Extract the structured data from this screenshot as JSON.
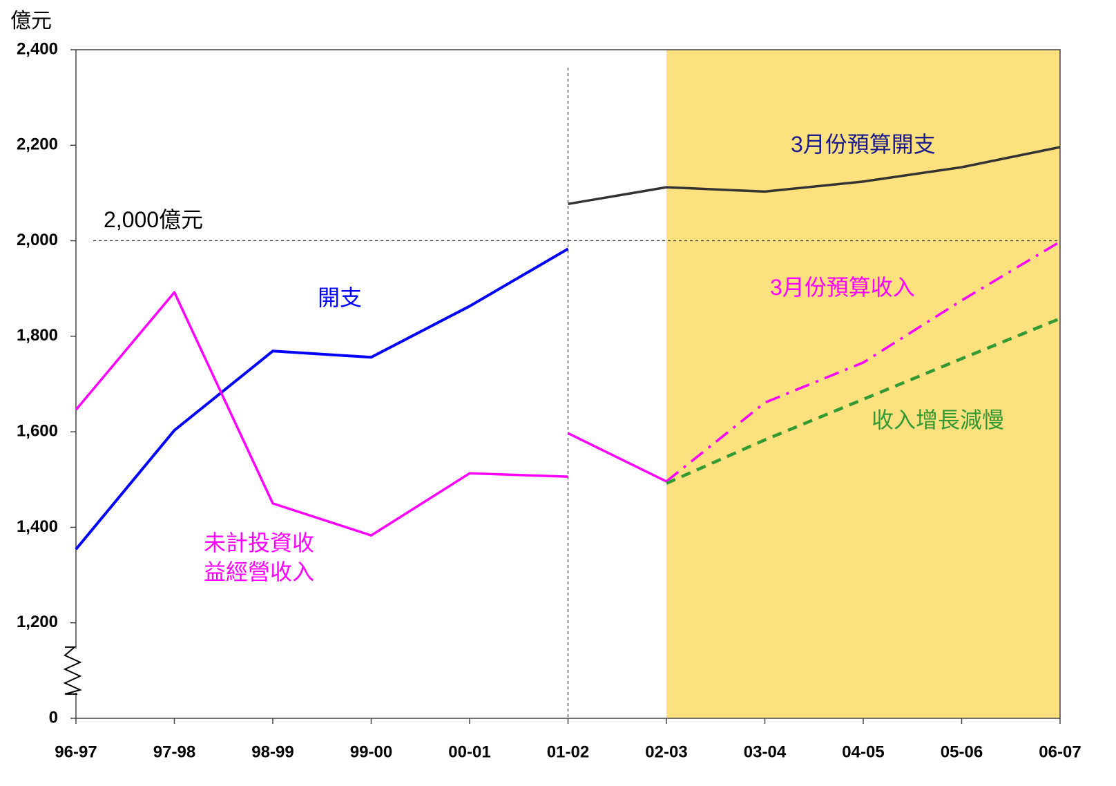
{
  "chart_data": {
    "type": "line",
    "unit": "億元",
    "categories": [
      "96-97",
      "97-98",
      "98-99",
      "99-00",
      "00-01",
      "01-02",
      "02-03",
      "03-04",
      "04-05",
      "05-06",
      "06-07"
    ],
    "ylim": [
      0,
      2400
    ],
    "yticks": [
      0,
      {
        "value": 1200,
        "label": "1,200"
      },
      {
        "value": 1400,
        "label": "1,400"
      },
      {
        "value": 1600,
        "label": "1,600"
      },
      {
        "value": 1800,
        "label": "1,800"
      },
      {
        "value": 2000,
        "label": "2,000"
      },
      {
        "value": 2200,
        "label": "2,200"
      },
      {
        "value": 2400,
        "label": "2,400"
      }
    ],
    "y_break": true,
    "shaded_from": "02-03",
    "shade_color": "#fde17e",
    "divider_at": "01-02",
    "reference": {
      "value": 2000,
      "label": "2,000億元",
      "color": "#1a1adb"
    },
    "series": [
      {
        "name": "開支",
        "color": "#0000ff",
        "width": 4,
        "values": [
          1354,
          1603,
          1769,
          1756,
          1863,
          1983,
          null,
          null,
          null,
          null,
          null
        ]
      },
      {
        "name": "未計投資收\n益經營收入",
        "color": "#ff00ff",
        "width": 3.5,
        "values": [
          1646,
          1892,
          1450,
          1383,
          1513,
          1506,
          null,
          null,
          null,
          null,
          null
        ]
      },
      {
        "name": "3月份預算開支",
        "color": "#333333",
        "label_color": "#1a1a8c",
        "width": 3.5,
        "values": [
          null,
          null,
          null,
          null,
          null,
          2077,
          2112,
          2103,
          2124,
          2154,
          2196
        ]
      },
      {
        "name": "3月份預算收入",
        "color": "#ff00ff",
        "width": 3.5,
        "dash": "dash-dot",
        "dash_from": "02-03",
        "values": [
          null,
          null,
          null,
          null,
          null,
          1597,
          1496,
          1661,
          1745,
          1875,
          1998
        ]
      },
      {
        "name": "收入增長減慢",
        "color": "#339933",
        "width": 4.5,
        "dash": "dash",
        "dash_from": "02-03",
        "values": [
          null,
          null,
          null,
          null,
          null,
          null,
          1492,
          1583,
          1668,
          1753,
          1837
        ]
      }
    ]
  }
}
